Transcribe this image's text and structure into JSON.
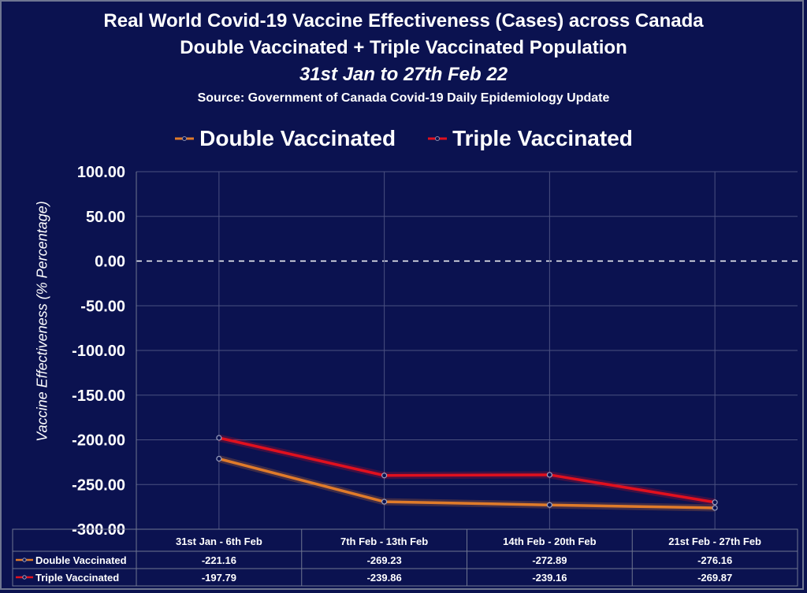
{
  "chart_data": {
    "type": "line",
    "title": "Real World Covid-19 Vaccine Effectiveness (Cases) across Canada",
    "subtitle": "Double Vaccinated + Triple Vaccinated Population",
    "date_range": "31st Jan to 27th Feb 22",
    "source": "Source: Government of Canada  Covid-19 Daily Epidemiology Update",
    "ylabel": "Vaccine Effectiveness (% Percentage)",
    "ylim": [
      -300,
      100
    ],
    "yticks": [
      100,
      50,
      0,
      -50,
      -100,
      -150,
      -200,
      -250,
      -300
    ],
    "ytick_labels": [
      "100.00",
      "50.00",
      "0.00",
      "-50.00",
      "-100.00",
      "-150.00",
      "-200.00",
      "-250.00",
      "-300.00"
    ],
    "categories": [
      "31st Jan - 6th Feb",
      "7th Feb - 13th Feb",
      "14th Feb - 20th Feb",
      "21st Feb - 27th Feb"
    ],
    "legend_position": "top",
    "grid": true,
    "zero_line": "dashed",
    "series": [
      {
        "name": "Double Vaccinated",
        "color": "#e07b2a",
        "values": [
          -221.16,
          -269.23,
          -272.89,
          -276.16
        ],
        "labels": [
          "-221.16",
          "-269.23",
          "-272.89",
          "-276.16"
        ]
      },
      {
        "name": "Triple Vaccinated",
        "color": "#e0101e",
        "values": [
          -197.79,
          -239.86,
          -239.16,
          -269.87
        ],
        "labels": [
          "-197.79",
          "-239.86",
          "-239.16",
          "-269.87"
        ]
      }
    ]
  }
}
